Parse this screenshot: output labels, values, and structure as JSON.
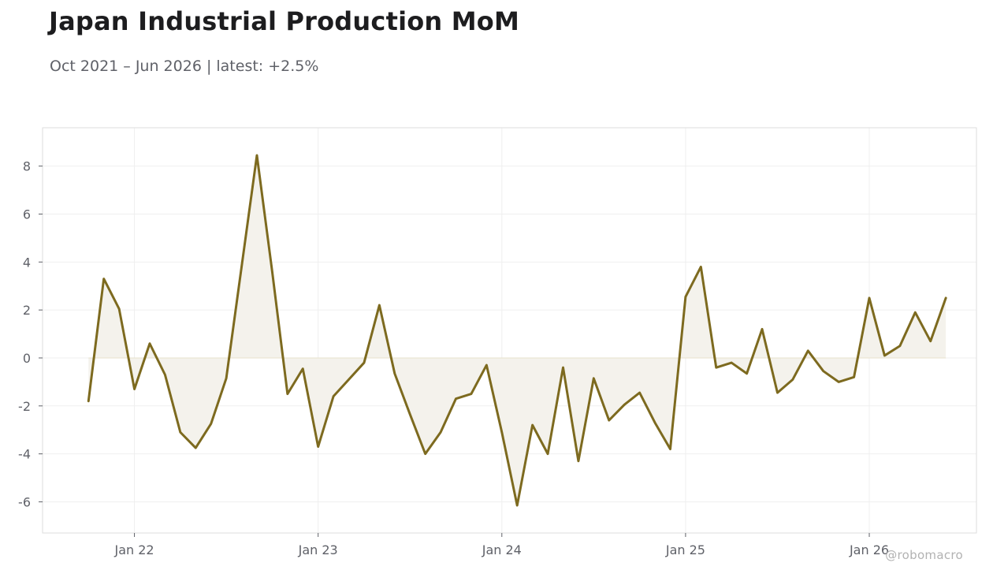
{
  "header": {
    "title": "Japan Industrial Production MoM",
    "subtitle": "Oct 2021 – Jun 2026 | latest: +2.5%"
  },
  "watermark": "@robomacro",
  "colors": {
    "line": "#7d6a1f",
    "fill": "#f4f2ec",
    "grid": "#efefef",
    "frame": "#dedede",
    "zero_line": "#e7e1cc"
  },
  "chart_data": {
    "type": "area",
    "title": "Japan Industrial Production MoM",
    "xlabel": "",
    "ylabel": "",
    "ylim": [
      -7.3,
      9.6
    ],
    "y_ticks": [
      -6,
      -4,
      -2,
      0,
      2,
      4,
      6,
      8
    ],
    "y_tick_labels": [
      "-6",
      "-4",
      "-2",
      "0",
      "2",
      "4",
      "6",
      "8"
    ],
    "x_ticks": [
      "Jan 22",
      "Jan 23",
      "Jan 24",
      "Jan 25",
      "Jan 26"
    ],
    "x_tick_dates": [
      "2022-01",
      "2023-01",
      "2024-01",
      "2025-01",
      "2026-01"
    ],
    "x_range": [
      "2021-07",
      "2026-08"
    ],
    "grid": true,
    "legend": "none",
    "series": [
      {
        "x": [
          "2021-10",
          "2021-11",
          "2021-12",
          "2022-01",
          "2022-02",
          "2022-03",
          "2022-04",
          "2022-05",
          "2022-06",
          "2022-07",
          "2022-08",
          "2022-09",
          "2022-10",
          "2022-11",
          "2022-12",
          "2023-01",
          "2023-02",
          "2023-03",
          "2023-04",
          "2023-05",
          "2023-06",
          "2023-07",
          "2023-08",
          "2023-09",
          "2023-10",
          "2023-11",
          "2023-12",
          "2024-01",
          "2024-02",
          "2024-03",
          "2024-04",
          "2024-05",
          "2024-06",
          "2024-07",
          "2024-08",
          "2024-09",
          "2024-10",
          "2024-11",
          "2024-12",
          "2025-01",
          "2025-02",
          "2025-03",
          "2025-04",
          "2025-05",
          "2025-06",
          "2025-07",
          "2025-08",
          "2025-09",
          "2025-10",
          "2025-11",
          "2025-12",
          "2026-01",
          "2026-02",
          "2026-03",
          "2026-04",
          "2026-05",
          "2026-06"
        ],
        "values": [
          -1.8,
          3.3,
          2.05,
          -1.3,
          0.6,
          -0.7,
          -3.1,
          -3.75,
          -2.75,
          -0.85,
          3.8,
          8.45,
          3.6,
          -1.5,
          -0.45,
          -3.7,
          -1.6,
          -0.9,
          -0.2,
          2.2,
          -0.65,
          -2.35,
          -4.0,
          -3.1,
          -1.7,
          -1.5,
          -0.3,
          -3.1,
          -6.15,
          -2.8,
          -4.0,
          -0.4,
          -4.3,
          -0.85,
          -2.6,
          -1.95,
          -1.45,
          -2.7,
          -3.8,
          2.55,
          3.8,
          -0.4,
          -0.2,
          -0.65,
          1.2,
          -1.45,
          -0.9,
          0.3,
          -0.55,
          -1.0,
          -0.8,
          2.5,
          0.1,
          0.5,
          1.9,
          0.7,
          2.5
        ]
      }
    ]
  }
}
